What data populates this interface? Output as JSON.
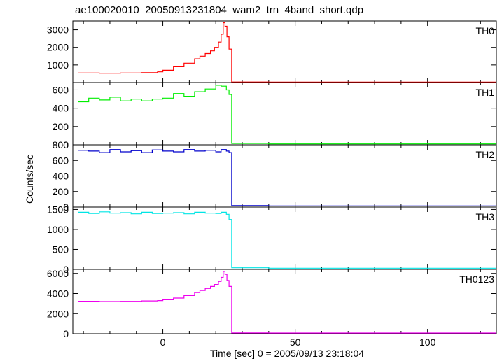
{
  "chart_data": {
    "type": "line",
    "title": "ae100020010_20050913231804_wam2_trn_4band_short.qdp",
    "xlabel": "Time [sec] 0 = 2005/09/13 23:18:04",
    "ylabel": "Counts/sec",
    "xlim": [
      -34,
      126
    ],
    "xticks": [
      0,
      50,
      100
    ],
    "series_colors": [
      "#ff0000",
      "#00ee00",
      "#0000cc",
      "#00e5e5",
      "#ee00ee"
    ],
    "panels": [
      {
        "name": "TH0",
        "color": "#ff0000",
        "ylim": [
          0,
          3500
        ],
        "yticks": [
          1000,
          2000,
          3000
        ],
        "ytick_labels": [
          "1000",
          "2000",
          "3000"
        ],
        "x": [
          -32,
          -24,
          -16,
          -8,
          -2,
          0,
          4,
          8,
          12,
          14,
          16,
          18,
          19.5,
          21,
          22,
          22.8,
          23.5,
          24.2,
          25,
          26,
          40,
          60,
          80,
          100,
          124
        ],
        "values": [
          540,
          530,
          540,
          560,
          610,
          700,
          900,
          1100,
          1350,
          1500,
          1650,
          1800,
          2000,
          2300,
          2750,
          3400,
          3200,
          2600,
          1900,
          30,
          25,
          25,
          25,
          25,
          25
        ]
      },
      {
        "name": "TH1",
        "color": "#00ee00",
        "ylim": [
          0,
          680
        ],
        "yticks": [
          0,
          200,
          400,
          600
        ],
        "ytick_labels": [
          "0",
          "200",
          "400",
          "600"
        ],
        "x": [
          -32,
          -28,
          -24,
          -20,
          -16,
          -12,
          -8,
          -4,
          0,
          4,
          8,
          12,
          16,
          20,
          22,
          24,
          25,
          26,
          40,
          60,
          80,
          100,
          124
        ],
        "values": [
          470,
          510,
          490,
          520,
          480,
          500,
          480,
          500,
          510,
          560,
          530,
          580,
          610,
          650,
          640,
          600,
          550,
          15,
          10,
          10,
          10,
          10,
          10
        ]
      },
      {
        "name": "TH2",
        "color": "#0000cc",
        "ylim": [
          0,
          800
        ],
        "yticks": [
          0,
          200,
          400,
          600,
          800
        ],
        "ytick_labels": [
          "0",
          "200",
          "400",
          "600",
          "800"
        ],
        "x": [
          -32,
          -28,
          -24,
          -20,
          -16,
          -12,
          -8,
          -4,
          0,
          4,
          8,
          12,
          16,
          20,
          22,
          24,
          25,
          26,
          40,
          60,
          80,
          100,
          124
        ],
        "values": [
          730,
          720,
          700,
          740,
          710,
          725,
          700,
          735,
          720,
          710,
          740,
          720,
          730,
          710,
          740,
          720,
          700,
          20,
          15,
          15,
          15,
          15,
          15
        ]
      },
      {
        "name": "TH3",
        "color": "#00e5e5",
        "ylim": [
          0,
          1560
        ],
        "yticks": [
          0,
          500,
          1000,
          1500
        ],
        "ytick_labels": [
          "0",
          "500",
          "1000",
          "1500"
        ],
        "x": [
          -32,
          -28,
          -24,
          -20,
          -16,
          -12,
          -8,
          -4,
          0,
          4,
          8,
          12,
          16,
          20,
          22,
          24,
          25,
          26,
          40,
          60,
          80,
          100,
          124
        ],
        "values": [
          1430,
          1400,
          1440,
          1410,
          1420,
          1390,
          1430,
          1400,
          1410,
          1420,
          1390,
          1430,
          1410,
          1400,
          1430,
          1380,
          1250,
          40,
          30,
          30,
          30,
          30,
          30
        ]
      },
      {
        "name": "TH0123",
        "color": "#ee00ee",
        "ylim": [
          0,
          6400
        ],
        "yticks": [
          0,
          2000,
          4000,
          6000
        ],
        "ytick_labels": [
          "0",
          "2000",
          "4000",
          "6000"
        ],
        "x": [
          -32,
          -24,
          -16,
          -8,
          -2,
          0,
          4,
          8,
          12,
          14,
          16,
          18,
          19.5,
          21,
          22,
          22.8,
          23.5,
          24.2,
          25,
          26,
          40,
          60,
          80,
          100,
          124
        ],
        "values": [
          3230,
          3200,
          3220,
          3260,
          3300,
          3380,
          3550,
          3800,
          4100,
          4300,
          4500,
          4700,
          4900,
          5200,
          5600,
          6200,
          5900,
          5300,
          4700,
          80,
          70,
          70,
          70,
          70,
          70
        ]
      }
    ]
  }
}
